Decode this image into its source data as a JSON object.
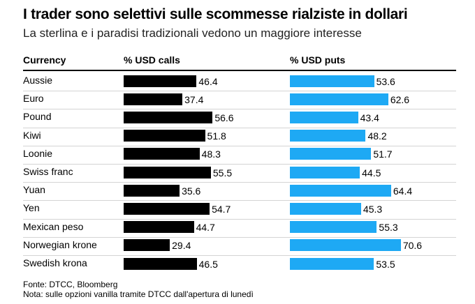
{
  "title": "I trader sono selettivi sulle scommesse rialziste in dollari",
  "subtitle": "La sterlina e i paradisi tradizionali vedono un maggiore interesse",
  "headers": {
    "currency": "Currency",
    "calls": "% USD calls",
    "puts": "% USD puts"
  },
  "colors": {
    "calls": "#000000",
    "puts": "#1ea9f4"
  },
  "chart_data": {
    "type": "bar",
    "orientation": "horizontal",
    "categories": [
      "Aussie",
      "Euro",
      "Pound",
      "Kiwi",
      "Loonie",
      "Swiss franc",
      "Yuan",
      "Yen",
      "Mexican peso",
      "Norwegian krone",
      "Swedish krona"
    ],
    "series": [
      {
        "name": "% USD calls",
        "values": [
          46.4,
          37.4,
          56.6,
          51.8,
          48.3,
          55.5,
          35.6,
          54.7,
          44.7,
          29.4,
          46.5
        ]
      },
      {
        "name": "% USD puts",
        "values": [
          53.6,
          62.6,
          43.4,
          48.2,
          51.7,
          44.5,
          64.4,
          45.3,
          55.3,
          70.6,
          53.5
        ]
      }
    ]
  },
  "footer": {
    "source": "Fonte: DTCC, Bloomberg",
    "note": "Nota: sulle opzioni vanilla tramite DTCC dall'apertura di lunedì"
  }
}
